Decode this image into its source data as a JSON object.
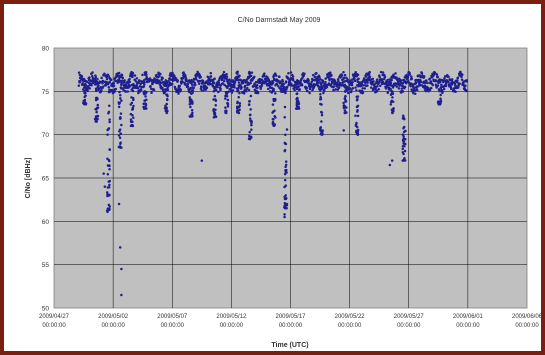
{
  "chart_data": {
    "type": "scatter",
    "title": "C/No Darmstadt May 2009",
    "xlabel": "Time (UTC)",
    "ylabel": "C/No [dBHz]",
    "ylim": [
      50,
      80
    ],
    "yticks": [
      50,
      55,
      60,
      65,
      70,
      75,
      80
    ],
    "xticks": [
      {
        "day": 27,
        "date": "2009/04/27",
        "time": "00:00:00"
      },
      {
        "day": 32,
        "date": "2009/05/02",
        "time": "00:00:00"
      },
      {
        "day": 37,
        "date": "2009/05/07",
        "time": "00:00:00"
      },
      {
        "day": 42,
        "date": "2009/05/12",
        "time": "00:00:00"
      },
      {
        "day": 47,
        "date": "2009/05/17",
        "time": "00:00:00"
      },
      {
        "day": 52,
        "date": "2009/05/22",
        "time": "00:00:00"
      },
      {
        "day": 57,
        "date": "2009/05/27",
        "time": "00:00:00"
      },
      {
        "day": 62,
        "date": "2009/06/01",
        "time": "00:00:00"
      },
      {
        "day": 67,
        "date": "2009/06/06",
        "time": "00:00:00"
      }
    ],
    "grid": true,
    "plot_background": "#c0c0c0",
    "series": [
      {
        "color": "#1f1f8f",
        "x_start": "2009/04/29 00:00:00",
        "x_end": "2009/06/01 00:00:00",
        "baseline": 76.0,
        "dips": [
          {
            "day": 29.6,
            "min": 73.5
          },
          {
            "day": 30.6,
            "min": 71.5
          },
          {
            "day": 31.6,
            "min": 61.0
          },
          {
            "day": 32.6,
            "min": 68.5
          },
          {
            "day": 33.6,
            "min": 71.0
          },
          {
            "day": 34.7,
            "min": 73.0
          },
          {
            "day": 36.5,
            "min": 72.5
          },
          {
            "day": 38.6,
            "min": 72.0
          },
          {
            "day": 40.6,
            "min": 72.0
          },
          {
            "day": 41.6,
            "min": 72.5
          },
          {
            "day": 42.6,
            "min": 72.5
          },
          {
            "day": 43.6,
            "min": 69.5
          },
          {
            "day": 45.6,
            "min": 71.0
          },
          {
            "day": 46.6,
            "min": 61.5
          },
          {
            "day": 47.6,
            "min": 73.0
          },
          {
            "day": 49.6,
            "min": 70.0
          },
          {
            "day": 51.6,
            "min": 72.5
          },
          {
            "day": 52.6,
            "min": 70.0
          },
          {
            "day": 55.6,
            "min": 72.5
          },
          {
            "day": 56.6,
            "min": 67.0
          },
          {
            "day": 59.6,
            "min": 73.5
          }
        ],
        "outliers": [
          {
            "day": 31.2,
            "value": 65.5
          },
          {
            "day": 31.3,
            "value": 64.0
          },
          {
            "day": 32.6,
            "value": 57.0
          },
          {
            "day": 32.7,
            "value": 54.5
          },
          {
            "day": 32.7,
            "value": 51.5
          },
          {
            "day": 32.5,
            "value": 62.0
          },
          {
            "day": 39.5,
            "value": 67.0
          },
          {
            "day": 46.5,
            "value": 60.8
          },
          {
            "day": 46.5,
            "value": 60.5
          },
          {
            "day": 46.7,
            "value": 62.0
          },
          {
            "day": 46.6,
            "value": 63.0
          },
          {
            "day": 51.5,
            "value": 70.5
          },
          {
            "day": 55.4,
            "value": 66.5
          },
          {
            "day": 55.6,
            "value": 67.0
          }
        ]
      }
    ]
  }
}
